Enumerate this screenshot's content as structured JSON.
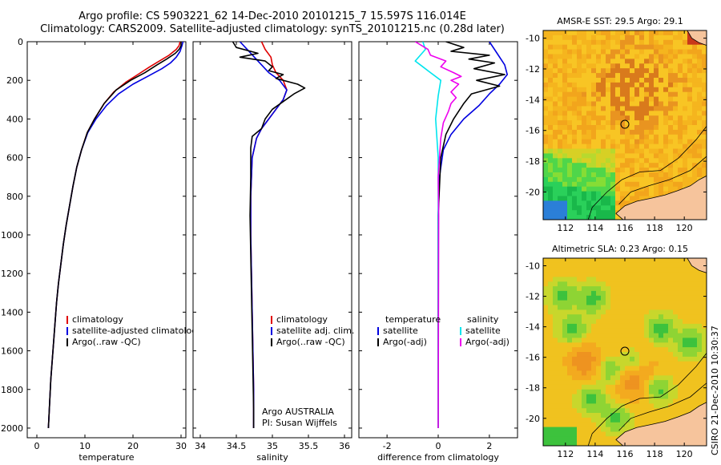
{
  "figure": {
    "title_line1": "Argo profile: CS 5903221_62 14-Dec-2010 20101215_7 15.597S 116.014E",
    "title_line2": "Climatology: CARS2009. Satellite-adjusted climatology: synTS_20101215.nc (0.28d later)",
    "credit": "CSIRO 21-Dec-2010 10:30:37",
    "colors": {
      "climatology": "#e00000",
      "satellite": "#0000e0",
      "argo": "#000000",
      "sat_salinity_diff": "#00e5ee",
      "argo_salinity_diff": "#ee00ee",
      "land": "#f6c49c"
    }
  },
  "chart_data": [
    {
      "type": "line",
      "panel": "temperature",
      "xlabel": "temperature",
      "xlim": [
        -2,
        31
      ],
      "ylim": [
        2050,
        0
      ],
      "xticks": [
        "0",
        "10",
        "20",
        "30"
      ],
      "yticks": [
        "0",
        "200",
        "400",
        "600",
        "800",
        "1000",
        "1200",
        "1400",
        "1600",
        "1800",
        "2000"
      ],
      "legend": [
        "climatology",
        "satellite-adjusted climatolog",
        "Argo(..raw -QC)"
      ],
      "series": [
        {
          "name": "climatology",
          "color": "#e00000",
          "points": [
            [
              29.8,
              0
            ],
            [
              29.6,
              20
            ],
            [
              29.0,
              40
            ],
            [
              27.5,
              70
            ],
            [
              25.5,
              100
            ],
            [
              23.5,
              130
            ],
            [
              21.0,
              170
            ],
            [
              18.5,
              210
            ],
            [
              16.0,
              260
            ],
            [
              14.0,
              320
            ],
            [
              12.0,
              400
            ],
            [
              10.5,
              470
            ],
            [
              9.3,
              560
            ],
            [
              8.3,
              650
            ],
            [
              7.5,
              750
            ],
            [
              6.8,
              850
            ],
            [
              6.1,
              950
            ],
            [
              5.5,
              1050
            ],
            [
              5.0,
              1150
            ],
            [
              4.5,
              1250
            ],
            [
              4.1,
              1350
            ],
            [
              3.8,
              1450
            ],
            [
              3.5,
              1550
            ],
            [
              3.2,
              1650
            ],
            [
              2.9,
              1750
            ],
            [
              2.7,
              1850
            ],
            [
              2.5,
              1950
            ],
            [
              2.4,
              2000
            ]
          ]
        },
        {
          "name": "satellite-adjusted climatolog",
          "color": "#0000e0",
          "points": [
            [
              30.4,
              0
            ],
            [
              30.2,
              20
            ],
            [
              29.8,
              50
            ],
            [
              29.0,
              80
            ],
            [
              27.8,
              110
            ],
            [
              26.0,
              140
            ],
            [
              23.0,
              180
            ],
            [
              20.0,
              220
            ],
            [
              17.0,
              270
            ],
            [
              14.5,
              330
            ],
            [
              12.3,
              400
            ],
            [
              10.6,
              470
            ],
            [
              9.3,
              560
            ],
            [
              8.3,
              650
            ],
            [
              7.5,
              750
            ],
            [
              6.8,
              850
            ],
            [
              6.1,
              950
            ],
            [
              5.5,
              1050
            ],
            [
              5.0,
              1150
            ],
            [
              4.5,
              1250
            ],
            [
              4.1,
              1350
            ],
            [
              3.8,
              1450
            ],
            [
              3.5,
              1550
            ],
            [
              3.2,
              1650
            ],
            [
              2.9,
              1750
            ],
            [
              2.7,
              1850
            ],
            [
              2.5,
              1950
            ],
            [
              2.4,
              2000
            ]
          ]
        },
        {
          "name": "Argo(..raw -QC)",
          "color": "#000000",
          "points": [
            [
              30.0,
              0
            ],
            [
              30.0,
              20
            ],
            [
              29.6,
              40
            ],
            [
              28.8,
              60
            ],
            [
              27.0,
              90
            ],
            [
              25.0,
              120
            ],
            [
              22.5,
              160
            ],
            [
              19.5,
              200
            ],
            [
              16.5,
              250
            ],
            [
              14.0,
              320
            ],
            [
              12.0,
              400
            ],
            [
              10.5,
              470
            ],
            [
              9.3,
              560
            ],
            [
              8.3,
              650
            ],
            [
              7.5,
              750
            ],
            [
              6.8,
              850
            ],
            [
              6.1,
              950
            ],
            [
              5.5,
              1050
            ],
            [
              5.0,
              1150
            ],
            [
              4.5,
              1250
            ],
            [
              4.1,
              1350
            ],
            [
              3.8,
              1450
            ],
            [
              3.5,
              1550
            ],
            [
              3.2,
              1650
            ],
            [
              2.9,
              1750
            ],
            [
              2.7,
              1850
            ],
            [
              2.5,
              1950
            ],
            [
              2.4,
              2000
            ]
          ]
        }
      ]
    },
    {
      "type": "line",
      "panel": "salinity",
      "xlabel": "salinity",
      "xlim": [
        33.9,
        36.1
      ],
      "ylim": [
        2050,
        0
      ],
      "xticks": [
        "34",
        "34.5",
        "35",
        "35.5",
        "36"
      ],
      "legend": [
        "climatology",
        "satellite adj. clim.",
        "Argo(..raw -QC)"
      ],
      "annotation": [
        "Argo AUSTRALIA",
        "PI: Susan Wijffels"
      ],
      "series": [
        {
          "name": "climatology",
          "color": "#e00000",
          "points": [
            [
              34.85,
              0
            ],
            [
              34.9,
              40
            ],
            [
              34.98,
              80
            ],
            [
              35.0,
              120
            ],
            [
              35.05,
              160
            ],
            [
              35.15,
              200
            ],
            [
              35.2,
              250
            ],
            [
              35.15,
              300
            ],
            [
              35.05,
              350
            ],
            [
              34.95,
              400
            ],
            [
              34.85,
              450
            ],
            [
              34.78,
              500
            ],
            [
              34.72,
              600
            ],
            [
              34.7,
              800
            ],
            [
              34.7,
              1000
            ],
            [
              34.71,
              1200
            ],
            [
              34.72,
              1400
            ],
            [
              34.73,
              1600
            ],
            [
              34.74,
              1800
            ],
            [
              34.74,
              2000
            ]
          ]
        },
        {
          "name": "satellite adj. clim.",
          "color": "#0000e0",
          "points": [
            [
              34.55,
              0
            ],
            [
              34.65,
              40
            ],
            [
              34.75,
              80
            ],
            [
              34.85,
              120
            ],
            [
              34.95,
              160
            ],
            [
              35.1,
              200
            ],
            [
              35.2,
              250
            ],
            [
              35.15,
              300
            ],
            [
              35.05,
              350
            ],
            [
              34.95,
              400
            ],
            [
              34.85,
              450
            ],
            [
              34.78,
              500
            ],
            [
              34.72,
              600
            ],
            [
              34.7,
              800
            ],
            [
              34.7,
              1000
            ],
            [
              34.71,
              1200
            ],
            [
              34.72,
              1400
            ],
            [
              34.73,
              1600
            ],
            [
              34.74,
              1800
            ],
            [
              34.74,
              2000
            ]
          ]
        },
        {
          "name": "Argo(..raw -QC)",
          "color": "#000000",
          "points": [
            [
              34.45,
              0
            ],
            [
              34.5,
              30
            ],
            [
              34.8,
              60
            ],
            [
              34.55,
              80
            ],
            [
              34.9,
              100
            ],
            [
              35.0,
              130
            ],
            [
              34.95,
              150
            ],
            [
              35.15,
              170
            ],
            [
              35.05,
              190
            ],
            [
              35.35,
              220
            ],
            [
              35.45,
              240
            ],
            [
              35.3,
              270
            ],
            [
              35.15,
              310
            ],
            [
              35.0,
              350
            ],
            [
              34.9,
              400
            ],
            [
              34.85,
              450
            ],
            [
              34.72,
              490
            ],
            [
              34.7,
              550
            ],
            [
              34.7,
              700
            ],
            [
              34.69,
              900
            ],
            [
              34.7,
              1100
            ],
            [
              34.71,
              1300
            ],
            [
              34.72,
              1500
            ],
            [
              34.73,
              1700
            ],
            [
              34.74,
              1900
            ],
            [
              34.74,
              2000
            ]
          ]
        }
      ]
    },
    {
      "type": "line",
      "panel": "difference",
      "xlabel": "difference from climatology",
      "xlim": [
        -3.1,
        3.1
      ],
      "ylim": [
        2050,
        0
      ],
      "xticks": [
        "-2",
        "0",
        "2"
      ],
      "legend_left_heading": "temperature",
      "legend_left": [
        "satellite",
        "Argo(-adj)"
      ],
      "legend_right_heading": "salinity",
      "legend_right": [
        "satellite",
        "Argo(-adj)"
      ],
      "series": [
        {
          "name": "satellite",
          "group": "temperature",
          "color": "#0000e0",
          "points": [
            [
              2.0,
              0
            ],
            [
              2.3,
              60
            ],
            [
              2.6,
              120
            ],
            [
              2.7,
              170
            ],
            [
              2.4,
              220
            ],
            [
              2.0,
              270
            ],
            [
              1.6,
              330
            ],
            [
              1.0,
              400
            ],
            [
              0.5,
              480
            ],
            [
              0.2,
              560
            ],
            [
              0.05,
              700
            ],
            [
              0.0,
              900
            ],
            [
              0.0,
              2000
            ]
          ]
        },
        {
          "name": "Argo(-adj)",
          "group": "temperature",
          "color": "#000000",
          "points": [
            [
              0.3,
              0
            ],
            [
              1.0,
              30
            ],
            [
              0.5,
              50
            ],
            [
              2.0,
              70
            ],
            [
              1.2,
              90
            ],
            [
              2.2,
              110
            ],
            [
              1.4,
              140
            ],
            [
              2.6,
              170
            ],
            [
              1.5,
              200
            ],
            [
              2.4,
              230
            ],
            [
              1.3,
              270
            ],
            [
              1.0,
              320
            ],
            [
              0.6,
              400
            ],
            [
              0.3,
              480
            ],
            [
              0.1,
              600
            ],
            [
              0.05,
              750
            ],
            [
              0.0,
              900
            ],
            [
              0.0,
              2000
            ]
          ]
        },
        {
          "name": "satellite",
          "group": "salinity",
          "color": "#00e5ee",
          "points": [
            [
              -0.6,
              0
            ],
            [
              -0.5,
              40
            ],
            [
              -0.9,
              100
            ],
            [
              -0.6,
              130
            ],
            [
              -0.3,
              160
            ],
            [
              0.1,
              200
            ],
            [
              0.0,
              280
            ],
            [
              -0.1,
              400
            ],
            [
              -0.05,
              500
            ],
            [
              0.0,
              600
            ],
            [
              0.0,
              2000
            ]
          ]
        },
        {
          "name": "Argo(-adj)",
          "group": "salinity",
          "color": "#ee00ee",
          "points": [
            [
              -0.9,
              0
            ],
            [
              -0.4,
              40
            ],
            [
              -0.3,
              70
            ],
            [
              0.3,
              100
            ],
            [
              0.1,
              130
            ],
            [
              0.6,
              160
            ],
            [
              0.9,
              180
            ],
            [
              0.5,
              200
            ],
            [
              0.8,
              220
            ],
            [
              0.5,
              260
            ],
            [
              0.7,
              290
            ],
            [
              0.5,
              320
            ],
            [
              0.4,
              360
            ],
            [
              0.2,
              420
            ],
            [
              0.1,
              500
            ],
            [
              0.05,
              600
            ],
            [
              0.0,
              700
            ],
            [
              0.02,
              900
            ],
            [
              0.0,
              2000
            ]
          ]
        }
      ]
    },
    {
      "type": "heatmap",
      "panel": "sst-map",
      "title": "AMSR-E SST: 29.5 Argo: 29.1",
      "xlim": [
        110.5,
        121.5
      ],
      "ylim": [
        -21.8,
        -9.5
      ],
      "xticks": [
        "112",
        "114",
        "116",
        "118",
        "120"
      ],
      "yticks": [
        "-10",
        "-12",
        "-14",
        "-16",
        "-18",
        "-20"
      ],
      "marker": {
        "lon": 116.0,
        "lat": -15.6
      }
    },
    {
      "type": "heatmap",
      "panel": "sla-map",
      "title": "Altimetric SLA: 0.23 Argo: 0.15",
      "xlim": [
        110.5,
        121.5
      ],
      "ylim": [
        -21.8,
        -9.5
      ],
      "xticks": [
        "112",
        "114",
        "116",
        "118",
        "120"
      ],
      "yticks": [
        "-10",
        "-12",
        "-14",
        "-16",
        "-18",
        "-20"
      ],
      "marker": {
        "lon": 116.0,
        "lat": -15.6
      }
    }
  ]
}
